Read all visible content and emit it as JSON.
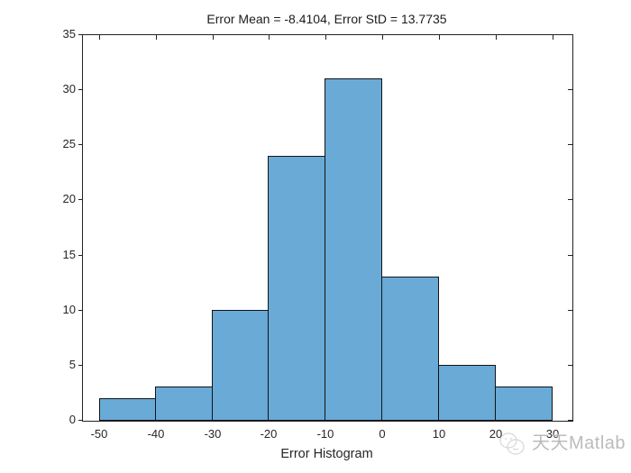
{
  "figure": {
    "background_color": "#ffffff"
  },
  "chart_data": {
    "type": "bar",
    "subtype": "histogram",
    "title": "Error Mean = -8.4104, Error StD = 13.7735",
    "xlabel": "Error Histogram",
    "ylabel": "",
    "bin_edges": [
      -50,
      -40,
      -30,
      -20,
      -10,
      0,
      10,
      20,
      30
    ],
    "counts": [
      2,
      3,
      10,
      24,
      31,
      13,
      5,
      3
    ],
    "xticks": [
      -50,
      -40,
      -30,
      -20,
      -10,
      0,
      10,
      20,
      30
    ],
    "yticks": [
      0,
      5,
      10,
      15,
      20,
      25,
      30,
      35
    ],
    "xlim": [
      -53,
      33.4
    ],
    "ylim": [
      0,
      35
    ],
    "grid": false,
    "legend_position": "none",
    "bar_fill_color": "#69AAD6",
    "bar_edge_color": "#141414",
    "axis_color": "#222222",
    "text_color": "#262626",
    "tick_style": {
      "left": "outward",
      "right": "inward",
      "top": "inward",
      "bottom": "hidden"
    }
  },
  "watermark": {
    "icon": "mascot-logo-icon",
    "text": "天天Matlab",
    "color": "#b2b2b2"
  }
}
